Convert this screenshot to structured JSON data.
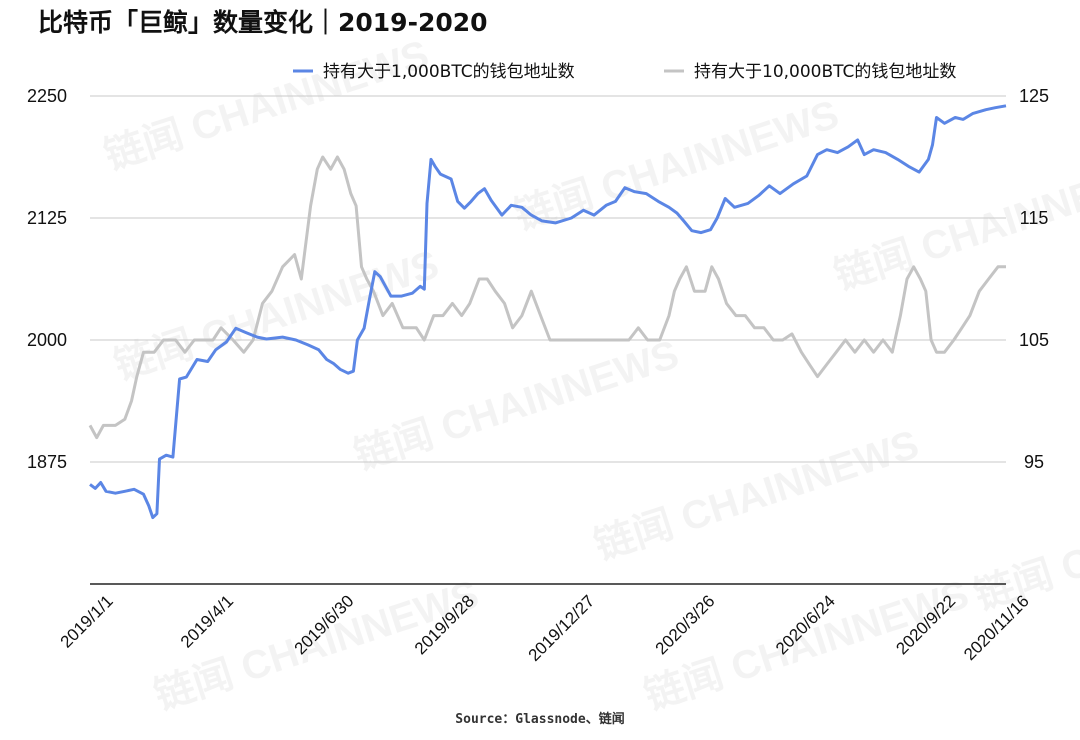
{
  "title": "比特币「巨鲸」数量变化｜2019-2020",
  "source": "Source：Glassnode、链闻",
  "watermark": "链闻 CHAINNEWS",
  "colors": {
    "series1": "#5b86e5",
    "series2": "#c4c4c4",
    "grid": "#c9c9c9",
    "axis": "#222222"
  },
  "chart_data": {
    "type": "line",
    "title": "比特币「巨鲸」数量变化｜2019-2020",
    "x_ticks": [
      "2019/1/1",
      "2019/4/1",
      "2019/6/30",
      "2019/9/28",
      "2019/12/27",
      "2020/3/26",
      "2020/6/24",
      "2020/9/22",
      "2020/11/16"
    ],
    "y_left": {
      "ticks": [
        1875,
        2000,
        2125,
        2250
      ],
      "range": [
        1750,
        2250
      ]
    },
    "y_right": {
      "ticks": [
        95,
        105,
        115,
        125
      ],
      "range": [
        85,
        125
      ]
    },
    "grid": true,
    "legend_position": "top-right",
    "series": [
      {
        "name": "持有大于1,000BTC的钱包地址数",
        "axis": "left",
        "color": "#5b86e5",
        "points": [
          [
            "2019-01-01",
            1852
          ],
          [
            "2019-01-05",
            1848
          ],
          [
            "2019-01-09",
            1854
          ],
          [
            "2019-01-13",
            1845
          ],
          [
            "2019-01-20",
            1843
          ],
          [
            "2019-01-27",
            1845
          ],
          [
            "2019-02-03",
            1847
          ],
          [
            "2019-02-10",
            1842
          ],
          [
            "2019-02-14",
            1830
          ],
          [
            "2019-02-17",
            1818
          ],
          [
            "2019-02-20",
            1822
          ],
          [
            "2019-02-22",
            1878
          ],
          [
            "2019-02-27",
            1882
          ],
          [
            "2019-03-04",
            1880
          ],
          [
            "2019-03-09",
            1960
          ],
          [
            "2019-03-14",
            1962
          ],
          [
            "2019-03-22",
            1980
          ],
          [
            "2019-03-30",
            1978
          ],
          [
            "2019-04-05",
            1990
          ],
          [
            "2019-04-13",
            1998
          ],
          [
            "2019-04-20",
            2012
          ],
          [
            "2019-04-27",
            2008
          ],
          [
            "2019-05-06",
            2003
          ],
          [
            "2019-05-13",
            2001
          ],
          [
            "2019-05-25",
            2003
          ],
          [
            "2019-06-04",
            2000
          ],
          [
            "2019-06-13",
            1995
          ],
          [
            "2019-06-21",
            1990
          ],
          [
            "2019-06-27",
            1980
          ],
          [
            "2019-07-02",
            1976
          ],
          [
            "2019-07-07",
            1970
          ],
          [
            "2019-07-13",
            1966
          ],
          [
            "2019-07-17",
            1968
          ],
          [
            "2019-07-20",
            2000
          ],
          [
            "2019-07-25",
            2012
          ],
          [
            "2019-07-29",
            2042
          ],
          [
            "2019-08-02",
            2070
          ],
          [
            "2019-08-06",
            2065
          ],
          [
            "2019-08-10",
            2055
          ],
          [
            "2019-08-14",
            2045
          ],
          [
            "2019-08-22",
            2045
          ],
          [
            "2019-08-30",
            2048
          ],
          [
            "2019-09-05",
            2055
          ],
          [
            "2019-09-08",
            2052
          ],
          [
            "2019-09-10",
            2140
          ],
          [
            "2019-09-13",
            2185
          ],
          [
            "2019-09-16",
            2178
          ],
          [
            "2019-09-20",
            2170
          ],
          [
            "2019-09-28",
            2165
          ],
          [
            "2019-10-03",
            2142
          ],
          [
            "2019-10-08",
            2135
          ],
          [
            "2019-10-13",
            2142
          ],
          [
            "2019-10-18",
            2150
          ],
          [
            "2019-10-23",
            2155
          ],
          [
            "2019-10-28",
            2143
          ],
          [
            "2019-11-05",
            2128
          ],
          [
            "2019-11-12",
            2138
          ],
          [
            "2019-11-20",
            2136
          ],
          [
            "2019-11-27",
            2128
          ],
          [
            "2019-12-05",
            2122
          ],
          [
            "2019-12-15",
            2120
          ],
          [
            "2019-12-27",
            2125
          ],
          [
            "2020-01-05",
            2133
          ],
          [
            "2020-01-13",
            2128
          ],
          [
            "2020-01-22",
            2138
          ],
          [
            "2020-01-29",
            2142
          ],
          [
            "2020-02-05",
            2156
          ],
          [
            "2020-02-12",
            2152
          ],
          [
            "2020-02-21",
            2150
          ],
          [
            "2020-03-01",
            2142
          ],
          [
            "2020-03-09",
            2136
          ],
          [
            "2020-03-15",
            2130
          ],
          [
            "2020-03-20",
            2122
          ],
          [
            "2020-03-26",
            2112
          ],
          [
            "2020-04-02",
            2110
          ],
          [
            "2020-04-09",
            2113
          ],
          [
            "2020-04-14",
            2125
          ],
          [
            "2020-04-20",
            2145
          ],
          [
            "2020-04-27",
            2136
          ],
          [
            "2020-05-07",
            2140
          ],
          [
            "2020-05-15",
            2148
          ],
          [
            "2020-05-23",
            2158
          ],
          [
            "2020-05-31",
            2150
          ],
          [
            "2020-06-10",
            2160
          ],
          [
            "2020-06-20",
            2168
          ],
          [
            "2020-06-28",
            2190
          ],
          [
            "2020-07-05",
            2195
          ],
          [
            "2020-07-13",
            2192
          ],
          [
            "2020-07-21",
            2198
          ],
          [
            "2020-07-28",
            2205
          ],
          [
            "2020-08-02",
            2190
          ],
          [
            "2020-08-09",
            2195
          ],
          [
            "2020-08-18",
            2192
          ],
          [
            "2020-08-27",
            2185
          ],
          [
            "2020-09-04",
            2178
          ],
          [
            "2020-09-12",
            2172
          ],
          [
            "2020-09-19",
            2185
          ],
          [
            "2020-09-22",
            2200
          ],
          [
            "2020-09-25",
            2228
          ],
          [
            "2020-10-01",
            2222
          ],
          [
            "2020-10-09",
            2228
          ],
          [
            "2020-10-15",
            2226
          ],
          [
            "2020-10-22",
            2232
          ],
          [
            "2020-11-01",
            2236
          ],
          [
            "2020-11-08",
            2238
          ],
          [
            "2020-11-16",
            2240
          ]
        ]
      },
      {
        "name": "持有大于10,000BTC的钱包地址数",
        "axis": "right",
        "color": "#c4c4c4",
        "points": [
          [
            "2019-01-01",
            98
          ],
          [
            "2019-01-06",
            97
          ],
          [
            "2019-01-11",
            98
          ],
          [
            "2019-01-20",
            98
          ],
          [
            "2019-01-27",
            98.5
          ],
          [
            "2019-02-01",
            100
          ],
          [
            "2019-02-05",
            102
          ],
          [
            "2019-02-10",
            104
          ],
          [
            "2019-02-18",
            104
          ],
          [
            "2019-02-25",
            105
          ],
          [
            "2019-03-06",
            105
          ],
          [
            "2019-03-13",
            104
          ],
          [
            "2019-03-20",
            105
          ],
          [
            "2019-03-27",
            105
          ],
          [
            "2019-04-03",
            105
          ],
          [
            "2019-04-09",
            106
          ],
          [
            "2019-04-18",
            105
          ],
          [
            "2019-04-26",
            104
          ],
          [
            "2019-05-03",
            105
          ],
          [
            "2019-05-10",
            108
          ],
          [
            "2019-05-17",
            109
          ],
          [
            "2019-05-25",
            111
          ],
          [
            "2019-06-03",
            112
          ],
          [
            "2019-06-08",
            110
          ],
          [
            "2019-06-15",
            116
          ],
          [
            "2019-06-20",
            119
          ],
          [
            "2019-06-24",
            120
          ],
          [
            "2019-06-30",
            119
          ],
          [
            "2019-07-05",
            120
          ],
          [
            "2019-07-10",
            119
          ],
          [
            "2019-07-15",
            117
          ],
          [
            "2019-07-19",
            116
          ],
          [
            "2019-07-23",
            111
          ],
          [
            "2019-07-27",
            110
          ],
          [
            "2019-08-01",
            109
          ],
          [
            "2019-08-08",
            107
          ],
          [
            "2019-08-15",
            108
          ],
          [
            "2019-08-23",
            106
          ],
          [
            "2019-09-02",
            106
          ],
          [
            "2019-09-08",
            105
          ],
          [
            "2019-09-15",
            107
          ],
          [
            "2019-09-22",
            107
          ],
          [
            "2019-09-29",
            108
          ],
          [
            "2019-10-06",
            107
          ],
          [
            "2019-10-12",
            108
          ],
          [
            "2019-10-19",
            110
          ],
          [
            "2019-10-25",
            110
          ],
          [
            "2019-10-31",
            109
          ],
          [
            "2019-11-07",
            108
          ],
          [
            "2019-11-13",
            106
          ],
          [
            "2019-11-20",
            107
          ],
          [
            "2019-11-27",
            109
          ],
          [
            "2019-12-04",
            107
          ],
          [
            "2019-12-11",
            105
          ],
          [
            "2019-12-21",
            105
          ],
          [
            "2019-12-31",
            105
          ],
          [
            "2020-01-11",
            105
          ],
          [
            "2020-01-21",
            105
          ],
          [
            "2020-01-31",
            105
          ],
          [
            "2020-02-08",
            105
          ],
          [
            "2020-02-15",
            106
          ],
          [
            "2020-02-22",
            105
          ],
          [
            "2020-03-02",
            105
          ],
          [
            "2020-03-09",
            107
          ],
          [
            "2020-03-13",
            109
          ],
          [
            "2020-03-17",
            110
          ],
          [
            "2020-03-22",
            111
          ],
          [
            "2020-03-28",
            109
          ],
          [
            "2020-04-05",
            109
          ],
          [
            "2020-04-10",
            111
          ],
          [
            "2020-04-15",
            110
          ],
          [
            "2020-04-21",
            108
          ],
          [
            "2020-04-28",
            107
          ],
          [
            "2020-05-05",
            107
          ],
          [
            "2020-05-12",
            106
          ],
          [
            "2020-05-19",
            106
          ],
          [
            "2020-05-26",
            105
          ],
          [
            "2020-06-02",
            105
          ],
          [
            "2020-06-09",
            105.5
          ],
          [
            "2020-06-16",
            104
          ],
          [
            "2020-06-22",
            103
          ],
          [
            "2020-06-28",
            102
          ],
          [
            "2020-07-05",
            103
          ],
          [
            "2020-07-12",
            104
          ],
          [
            "2020-07-19",
            105
          ],
          [
            "2020-07-26",
            104
          ],
          [
            "2020-08-02",
            105
          ],
          [
            "2020-08-09",
            104
          ],
          [
            "2020-08-16",
            105
          ],
          [
            "2020-08-23",
            104
          ],
          [
            "2020-08-29",
            107
          ],
          [
            "2020-09-03",
            110
          ],
          [
            "2020-09-08",
            111
          ],
          [
            "2020-09-13",
            110
          ],
          [
            "2020-09-17",
            109
          ],
          [
            "2020-09-21",
            105
          ],
          [
            "2020-09-25",
            104
          ],
          [
            "2020-10-01",
            104
          ],
          [
            "2020-10-08",
            105
          ],
          [
            "2020-10-14",
            106
          ],
          [
            "2020-10-20",
            107
          ],
          [
            "2020-10-27",
            109
          ],
          [
            "2020-11-03",
            110
          ],
          [
            "2020-11-10",
            111
          ],
          [
            "2020-11-16",
            111
          ]
        ]
      }
    ]
  }
}
